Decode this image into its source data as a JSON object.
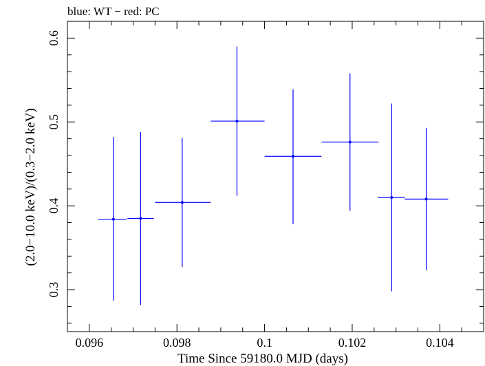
{
  "chart_data": {
    "type": "scatter",
    "title": "blue: WT − red: PC",
    "xlabel": "Time Since 59180.0 MJD (days)",
    "ylabel": "(2.0−10.0 keV)/(0.3−2.0 keV)",
    "xlim": [
      0.0955,
      0.105
    ],
    "ylim": [
      0.25,
      0.62
    ],
    "x_ticks": [
      {
        "value": 0.096,
        "label": "0.096"
      },
      {
        "value": 0.098,
        "label": "0.098"
      },
      {
        "value": 0.1,
        "label": "0.1"
      },
      {
        "value": 0.102,
        "label": "0.102"
      },
      {
        "value": 0.104,
        "label": "0.104"
      }
    ],
    "y_ticks": [
      {
        "value": 0.3,
        "label": "0.3"
      },
      {
        "value": 0.4,
        "label": "0.4"
      },
      {
        "value": 0.5,
        "label": "0.5"
      },
      {
        "value": 0.6,
        "label": "0.6"
      }
    ],
    "series": [
      {
        "name": "WT",
        "color": "#0000ff",
        "points": [
          {
            "x": 0.09655,
            "xerr_low": 0.00035,
            "xerr_high": 0.0003,
            "y": 0.384,
            "yerr_low": 0.097,
            "yerr_high": 0.098
          },
          {
            "x": 0.09717,
            "xerr_low": 0.0003,
            "xerr_high": 0.0003,
            "y": 0.385,
            "yerr_low": 0.103,
            "yerr_high": 0.103
          },
          {
            "x": 0.09812,
            "xerr_low": 0.00062,
            "xerr_high": 0.00065,
            "y": 0.404,
            "yerr_low": 0.077,
            "yerr_high": 0.077
          },
          {
            "x": 0.09937,
            "xerr_low": 0.0006,
            "xerr_high": 0.00063,
            "y": 0.501,
            "yerr_low": 0.089,
            "yerr_high": 0.089
          },
          {
            "x": 0.10065,
            "xerr_low": 0.00065,
            "xerr_high": 0.00065,
            "y": 0.459,
            "yerr_low": 0.081,
            "yerr_high": 0.08
          },
          {
            "x": 0.10195,
            "xerr_low": 0.00065,
            "xerr_high": 0.00065,
            "y": 0.476,
            "yerr_low": 0.082,
            "yerr_high": 0.082
          },
          {
            "x": 0.1029,
            "xerr_low": 0.00032,
            "xerr_high": 0.0003,
            "y": 0.41,
            "yerr_low": 0.112,
            "yerr_high": 0.112
          },
          {
            "x": 0.10369,
            "xerr_low": 0.00049,
            "xerr_high": 0.0005,
            "y": 0.408,
            "yerr_low": 0.085,
            "yerr_high": 0.085
          }
        ]
      }
    ]
  }
}
